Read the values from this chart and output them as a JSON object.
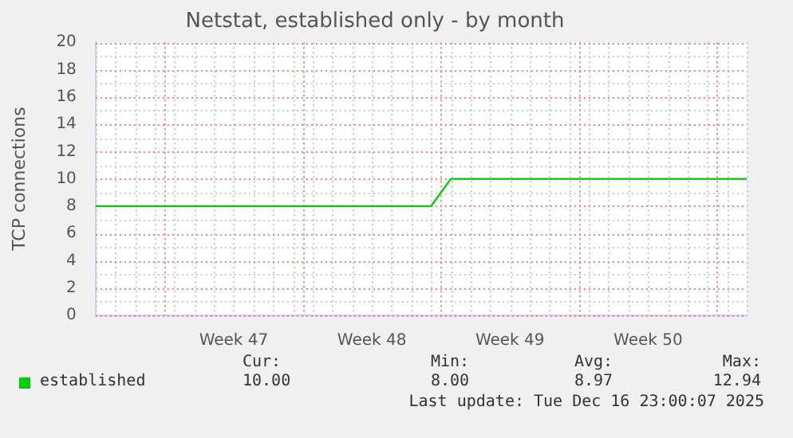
{
  "chart_data": {
    "type": "line",
    "title": "Netstat, established only - by month",
    "ylabel": "TCP connections",
    "categories": [
      null,
      null,
      null,
      null,
      null,
      null,
      null,
      "Week 47",
      null,
      null,
      null,
      null,
      null,
      null,
      "Week 48",
      null,
      null,
      null,
      null,
      null,
      null,
      "Week 49",
      null,
      null,
      null,
      null,
      null,
      null,
      "Week 50",
      null,
      null,
      null,
      null,
      null
    ],
    "series": [
      {
        "name": "established",
        "color": "#00cc00",
        "values": [
          8,
          8,
          8,
          8,
          8,
          8,
          8,
          8,
          8,
          8,
          8,
          8,
          8,
          8,
          8,
          8,
          8,
          8,
          10,
          10,
          10,
          10,
          10,
          10,
          10,
          10,
          10,
          10,
          10,
          10,
          10,
          10,
          10,
          10
        ]
      }
    ],
    "ylim": [
      0,
      20
    ],
    "yticks": [
      0,
      2,
      4,
      6,
      8,
      10,
      12,
      14,
      16,
      18,
      20
    ],
    "grid": true,
    "legend": "bottom",
    "marker": "none",
    "line_style": "solid",
    "annotations": [
      "Cur:",
      "10.00",
      "Min:",
      "8.00",
      "Avg:",
      "8.97",
      "Max:",
      "12.94",
      "Last update: Tue Dec 16 23:00:07 2025"
    ]
  }
}
